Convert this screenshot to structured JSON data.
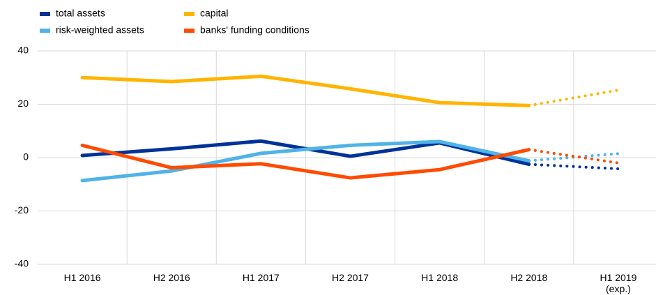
{
  "chart_data": {
    "type": "line",
    "categories": [
      "H1 2016",
      "H2 2016",
      "H1 2017",
      "H2 2017",
      "H1 2018",
      "H2 2018",
      "H1 2019\n(exp.)"
    ],
    "series": [
      {
        "name": "total assets",
        "color": "#003299",
        "values": [
          0.8,
          3.3,
          6.2,
          0.5,
          5.5,
          -2.5,
          -4.2
        ]
      },
      {
        "name": "risk-weighted assets",
        "color": "#4fb3e8",
        "values": [
          -8.6,
          -5,
          1.6,
          4.6,
          6,
          -1.2,
          1.5
        ]
      },
      {
        "name": "capital",
        "color": "#ffb400",
        "values": [
          30,
          28.5,
          30.5,
          25.8,
          20.6,
          19.5,
          25.3
        ]
      },
      {
        "name": "banks' funding conditions",
        "color": "#ff4b00",
        "values": [
          4.6,
          -3.8,
          -2.3,
          -7.6,
          -4.5,
          3,
          -2
        ]
      }
    ],
    "dotted_from_category": 5,
    "ylim": [
      -40,
      40
    ],
    "yticks": [
      -40,
      -20,
      0,
      20,
      40
    ],
    "grid": true
  }
}
